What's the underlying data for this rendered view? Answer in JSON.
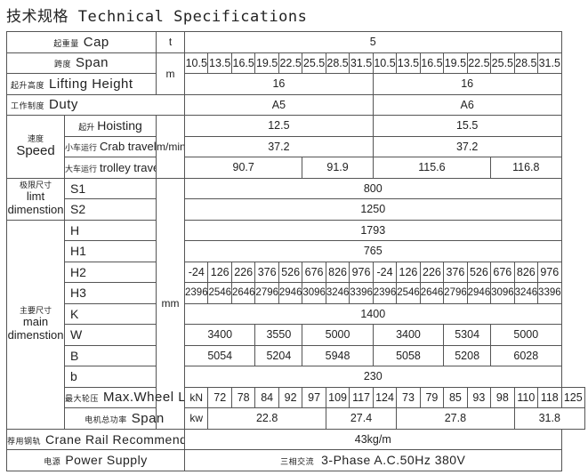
{
  "title": {
    "zh": "技术规格",
    "en": "Technical Specifications"
  },
  "rows": {
    "cap": {
      "zh": "起重量",
      "en": "Cap",
      "unit": "t",
      "values": [
        "5"
      ]
    },
    "span": {
      "zh": "跨度",
      "en": "Span",
      "unit": "m",
      "values": [
        "10.5",
        "13.5",
        "16.5",
        "19.5",
        "22.5",
        "25.5",
        "28.5",
        "31.5",
        "10.5",
        "13.5",
        "16.5",
        "19.5",
        "22.5",
        "25.5",
        "28.5",
        "31.5"
      ]
    },
    "lift": {
      "zh": "起升高度",
      "en": "Lifting Height",
      "values": [
        "16",
        "16"
      ]
    },
    "duty": {
      "zh": "工作制度",
      "en": "Duty",
      "values": [
        "A5",
        "A6"
      ]
    },
    "speed": {
      "zh": "速度",
      "en": "Speed",
      "unit": "m/min"
    },
    "hoist": {
      "zh": "起升",
      "en": "Hoisting",
      "values": [
        "12.5",
        "15.5"
      ]
    },
    "crab": {
      "zh": "小车运行",
      "en": "Crab travelling",
      "values": [
        "37.2",
        "37.2"
      ]
    },
    "trolley": {
      "zh": "大车运行",
      "en": "trolley travelling",
      "values": [
        "90.7",
        "91.9",
        "115.6",
        "116.8"
      ]
    },
    "limit": {
      "zh": "极限尺寸",
      "en1": "limt",
      "en2": "dimenstion"
    },
    "s1": {
      "en": "S1",
      "values": [
        "800"
      ]
    },
    "s2": {
      "en": "S2",
      "values": [
        "1250"
      ]
    },
    "main": {
      "zh": "主要尺寸",
      "en1": "main",
      "en2": "dimenstion",
      "unit": "mm"
    },
    "h": {
      "en": "H",
      "values": [
        "1793"
      ]
    },
    "h1": {
      "en": "H1",
      "values": [
        "765"
      ]
    },
    "h2": {
      "en": "H2",
      "values": [
        "-24",
        "126",
        "226",
        "376",
        "526",
        "676",
        "826",
        "976",
        "-24",
        "126",
        "226",
        "376",
        "526",
        "676",
        "826",
        "976"
      ]
    },
    "h3": {
      "en": "H3",
      "values": [
        "2396",
        "2546",
        "2646",
        "2796",
        "2946",
        "3096",
        "3246",
        "3396",
        "2396",
        "2546",
        "2646",
        "2796",
        "2946",
        "3096",
        "3246",
        "3396"
      ]
    },
    "k": {
      "en": "K",
      "values": [
        "1400"
      ]
    },
    "w": {
      "en": "W",
      "values": [
        "3400",
        "3550",
        "5000",
        "3400",
        "5304",
        "5000"
      ]
    },
    "b_upper": {
      "en": "B",
      "values": [
        "5054",
        "5204",
        "5948",
        "5058",
        "5208",
        "6028"
      ]
    },
    "b_lower": {
      "en": "b",
      "values": [
        "230"
      ]
    },
    "load": {
      "zh": "最大轮压",
      "en": "Max.Wheel Loading",
      "unit": "kN",
      "values": [
        "72",
        "78",
        "84",
        "92",
        "97",
        "109",
        "117",
        "124",
        "73",
        "79",
        "85",
        "93",
        "98",
        "110",
        "118",
        "125"
      ]
    },
    "power": {
      "zh": "电机总功率",
      "en": "Span",
      "unit": "kw",
      "values": [
        "22.8",
        "27.4",
        "27.8",
        "31.8"
      ]
    },
    "rail": {
      "zh": "荐用钢轨",
      "en": "Crane Rail Recommended",
      "values": [
        "43kg/m"
      ]
    },
    "supply": {
      "zh": "电源",
      "en": "Power Supply",
      "value_zh": "三相交流",
      "value_en": "3-Phase A.C.50Hz 380V"
    }
  }
}
